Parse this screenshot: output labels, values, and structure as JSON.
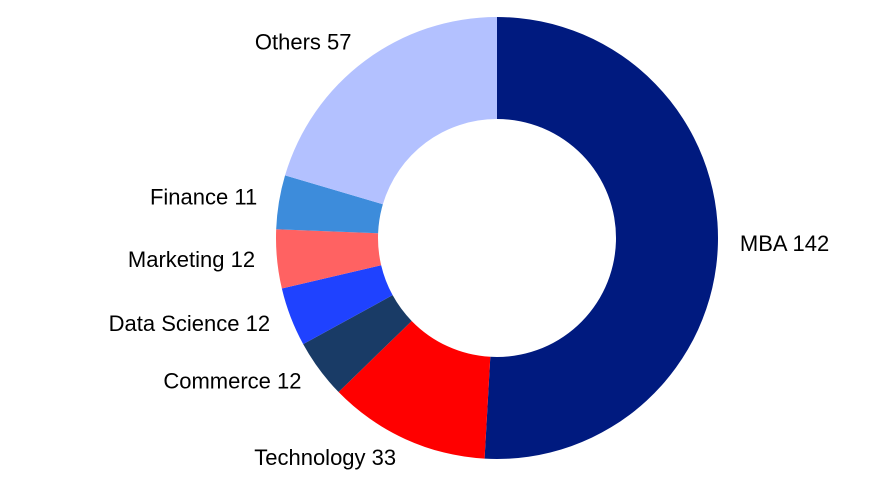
{
  "chart_data": {
    "type": "donut",
    "categories": [
      "MBA",
      "Technology",
      "Commerce",
      "Data Science",
      "Marketing",
      "Finance",
      "Others"
    ],
    "values": [
      142,
      33,
      12,
      12,
      12,
      11,
      57
    ],
    "colors": [
      "#001a7f",
      "#ff0000",
      "#193b66",
      "#1f42ff",
      "#ff6262",
      "#3d8cdb",
      "#b3c1ff"
    ]
  }
}
